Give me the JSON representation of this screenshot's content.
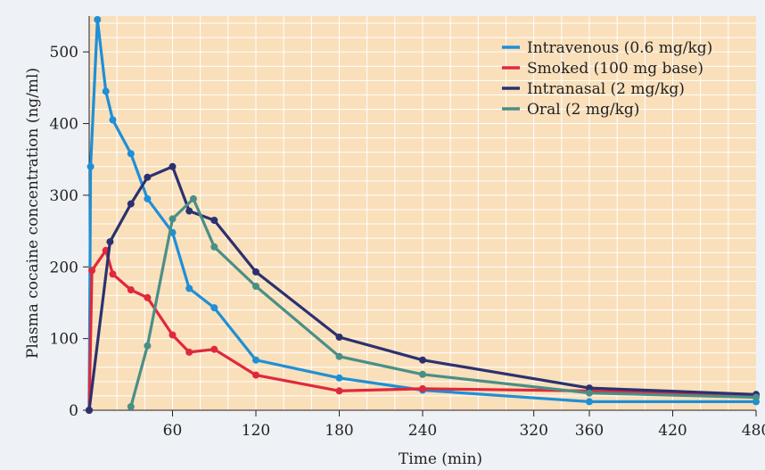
{
  "chart_data": {
    "type": "line",
    "xlabel": "Time (min)",
    "ylabel": "Plasma cocaine concentration (ng/ml)",
    "xlim": [
      0,
      480
    ],
    "ylim": [
      0,
      550
    ],
    "x_ticks": [
      60,
      120,
      180,
      240,
      320,
      360,
      420,
      480
    ],
    "y_ticks": [
      0,
      100,
      200,
      300,
      400,
      500
    ],
    "grid": true,
    "legend_position": "top-right",
    "colors": {
      "plot_background": "#f9dfba",
      "grid": "#ffffff",
      "page_background": "#eef1f5"
    },
    "series": [
      {
        "name": "Intravenous (0.6 mg/kg)",
        "color": "#1f8fd6",
        "points": [
          [
            0,
            0
          ],
          [
            1,
            340
          ],
          [
            6,
            545
          ],
          [
            12,
            445
          ],
          [
            17,
            405
          ],
          [
            30,
            358
          ],
          [
            42,
            295
          ],
          [
            60,
            248
          ],
          [
            72,
            170
          ],
          [
            90,
            143
          ],
          [
            120,
            70
          ],
          [
            180,
            45
          ],
          [
            240,
            28
          ],
          [
            360,
            12
          ],
          [
            480,
            12
          ]
        ]
      },
      {
        "name": "Smoked (100 mg base)",
        "color": "#e0283c",
        "points": [
          [
            0,
            0
          ],
          [
            2,
            195
          ],
          [
            12,
            223
          ],
          [
            17,
            190
          ],
          [
            30,
            168
          ],
          [
            42,
            157
          ],
          [
            60,
            105
          ],
          [
            72,
            81
          ],
          [
            90,
            85
          ],
          [
            120,
            49
          ],
          [
            180,
            27
          ],
          [
            240,
            30
          ],
          [
            360,
            27
          ],
          [
            480,
            20
          ]
        ]
      },
      {
        "name": "Intranasal (2 mg/kg)",
        "color": "#2b3170",
        "points": [
          [
            0,
            0
          ],
          [
            15,
            235
          ],
          [
            30,
            288
          ],
          [
            42,
            325
          ],
          [
            60,
            340
          ],
          [
            72,
            278
          ],
          [
            90,
            265
          ],
          [
            120,
            193
          ],
          [
            180,
            102
          ],
          [
            240,
            70
          ],
          [
            360,
            31
          ],
          [
            480,
            22
          ]
        ]
      },
      {
        "name": "Oral (2 mg/kg)",
        "color": "#4a8f86",
        "points": [
          [
            30,
            5
          ],
          [
            42,
            90
          ],
          [
            60,
            267
          ],
          [
            75,
            295
          ],
          [
            90,
            228
          ],
          [
            120,
            173
          ],
          [
            180,
            75
          ],
          [
            240,
            50
          ],
          [
            360,
            24
          ],
          [
            480,
            18
          ]
        ]
      }
    ]
  }
}
